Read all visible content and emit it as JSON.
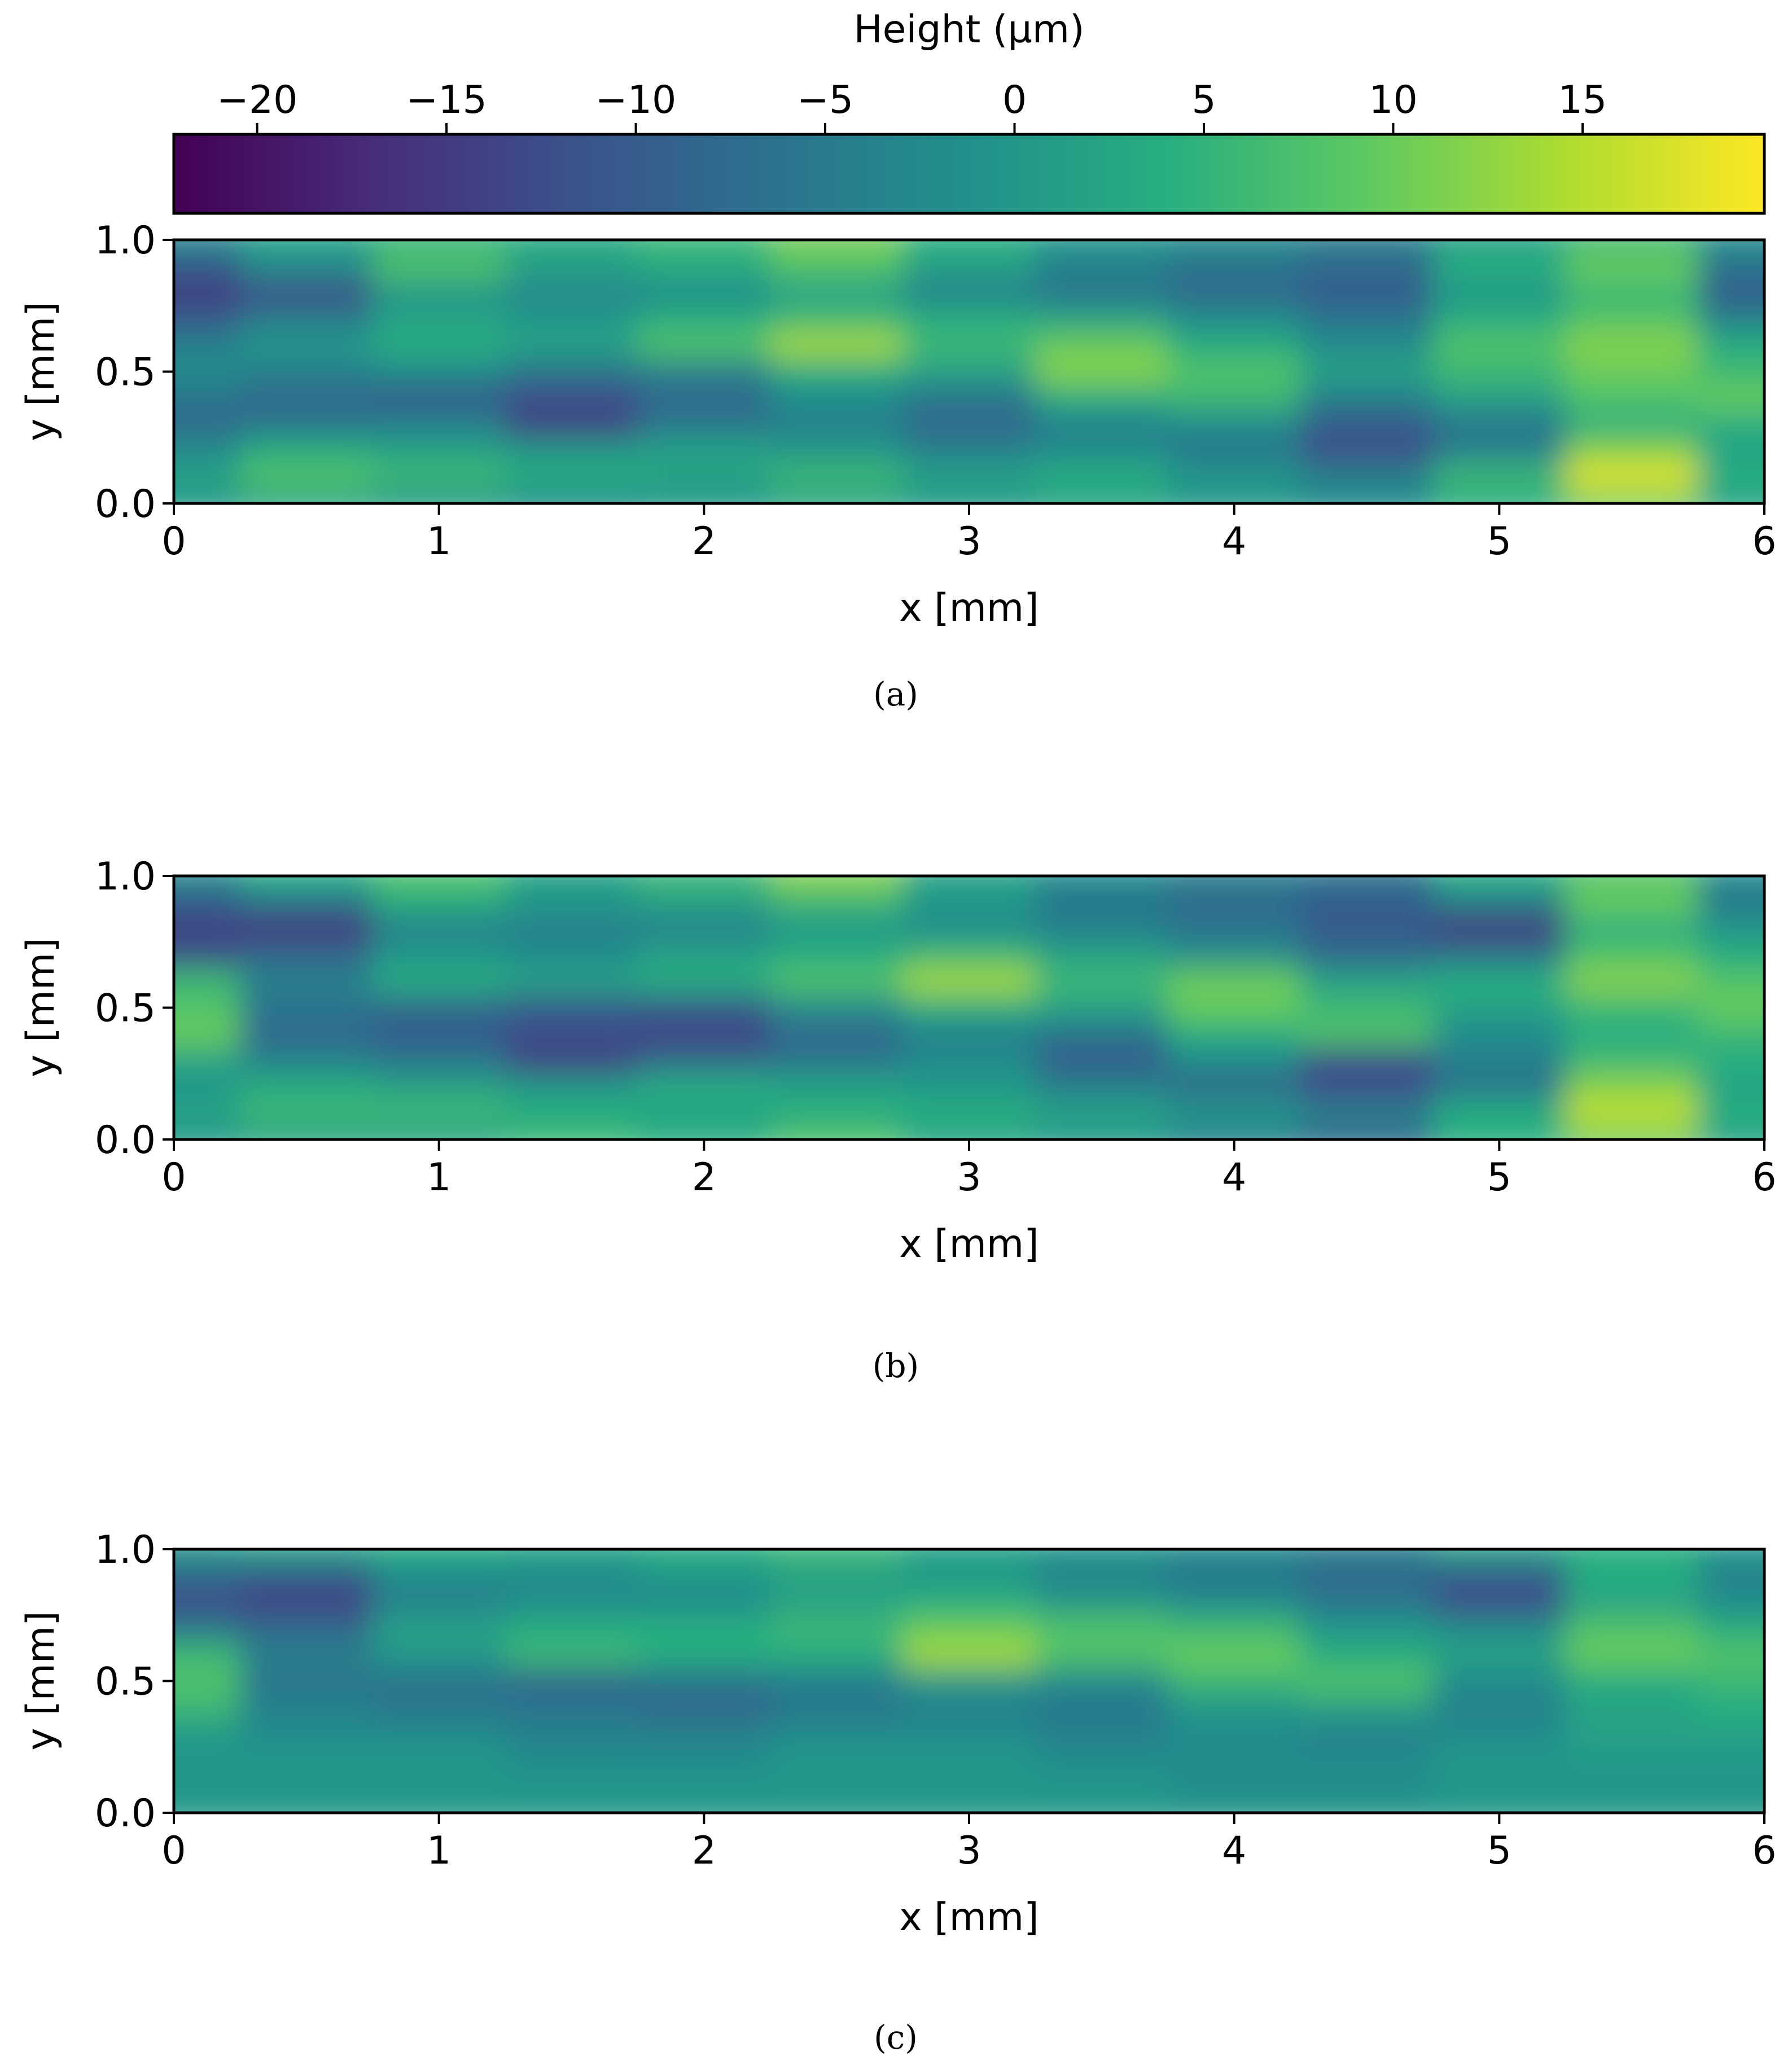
{
  "colorbar": {
    "label": "Height (µm)",
    "ticks": [
      -20,
      -15,
      -10,
      -5,
      0,
      5,
      10,
      15
    ],
    "tick_labels": [
      "−20",
      "−15",
      "−10",
      "−5",
      "0",
      "5",
      "10",
      "15"
    ],
    "range": [
      -22.2,
      19.8
    ],
    "colormap": "viridis"
  },
  "chart_data": [
    {
      "type": "heatmap",
      "caption": "(a)",
      "xlabel": "x [mm]",
      "ylabel": "y [mm]",
      "xlim": [
        0,
        6
      ],
      "ylim": [
        0,
        1
      ],
      "xticks": [
        "0",
        "1",
        "2",
        "3",
        "4",
        "5",
        "6"
      ],
      "yticks": [
        "0.0",
        "0.5",
        "1.0"
      ],
      "z_grid_columns": [
        0,
        0.5,
        1,
        1.5,
        2,
        2.5,
        3,
        3.5,
        4,
        4.5,
        5,
        5.5,
        6
      ],
      "z_grid_rows": [
        1.0,
        0.9,
        0.8,
        0.7,
        0.6,
        0.5,
        0.4,
        0.3,
        0.2,
        0.1,
        0.0
      ],
      "z": [
        [
          -3,
          2,
          5,
          3,
          6,
          11,
          4,
          0,
          -2,
          -4,
          2,
          6,
          -2
        ],
        [
          -10,
          -2,
          8,
          2,
          4,
          8,
          2,
          -4,
          -6,
          -8,
          4,
          10,
          -6
        ],
        [
          -15,
          -12,
          0,
          -3,
          -2,
          2,
          -4,
          -6,
          -8,
          -10,
          0,
          6,
          -10
        ],
        [
          -10,
          -5,
          2,
          0,
          4,
          6,
          4,
          2,
          -2,
          -6,
          4,
          8,
          -4
        ],
        [
          -4,
          0,
          4,
          2,
          8,
          14,
          6,
          10,
          4,
          -2,
          8,
          12,
          4
        ],
        [
          -2,
          -4,
          -2,
          -6,
          -4,
          4,
          2,
          12,
          8,
          2,
          6,
          10,
          6
        ],
        [
          -6,
          -8,
          -10,
          -12,
          -8,
          -2,
          -6,
          4,
          6,
          -4,
          2,
          8,
          10
        ],
        [
          -8,
          -6,
          -4,
          -14,
          -6,
          -4,
          -8,
          -4,
          -2,
          -10,
          -6,
          4,
          4
        ],
        [
          -2,
          4,
          2,
          0,
          2,
          0,
          -4,
          -2,
          -6,
          -12,
          -4,
          12,
          2
        ],
        [
          2,
          8,
          6,
          4,
          2,
          6,
          2,
          4,
          0,
          -4,
          6,
          18,
          4
        ],
        [
          0,
          2,
          0,
          -2,
          0,
          2,
          0,
          2,
          0,
          -2,
          4,
          10,
          2
        ]
      ]
    },
    {
      "type": "heatmap",
      "caption": "(b)",
      "xlabel": "x [mm]",
      "ylabel": "y [mm]",
      "xlim": [
        0,
        6
      ],
      "ylim": [
        0,
        1
      ],
      "xticks": [
        "0",
        "1",
        "2",
        "3",
        "4",
        "5",
        "6"
      ],
      "yticks": [
        "0.0",
        "0.5",
        "1.0"
      ],
      "z_grid_columns": [
        0,
        0.5,
        1,
        1.5,
        2,
        2.5,
        3,
        3.5,
        4,
        4.5,
        5,
        5.5,
        6
      ],
      "z_grid_rows": [
        1.0,
        0.9,
        0.8,
        0.7,
        0.6,
        0.5,
        0.4,
        0.3,
        0.2,
        0.1,
        0.0
      ],
      "z": [
        [
          -2,
          4,
          8,
          2,
          6,
          12,
          2,
          -2,
          -4,
          -6,
          4,
          8,
          -2
        ],
        [
          -10,
          -6,
          4,
          0,
          2,
          6,
          0,
          -6,
          -8,
          -10,
          -4,
          10,
          -6
        ],
        [
          -14,
          -16,
          -4,
          -4,
          -4,
          0,
          -2,
          -4,
          -6,
          -10,
          -16,
          4,
          0
        ],
        [
          -12,
          -8,
          0,
          -2,
          2,
          4,
          6,
          2,
          -2,
          -8,
          -6,
          8,
          4
        ],
        [
          6,
          -4,
          4,
          2,
          4,
          8,
          14,
          6,
          10,
          2,
          4,
          12,
          8
        ],
        [
          8,
          -6,
          -8,
          -10,
          -10,
          -2,
          4,
          2,
          10,
          6,
          2,
          6,
          10
        ],
        [
          10,
          -8,
          -10,
          -12,
          -14,
          -8,
          -4,
          -6,
          4,
          8,
          -2,
          4,
          6
        ],
        [
          2,
          -4,
          -6,
          -14,
          -8,
          -6,
          -2,
          -10,
          -2,
          -12,
          -4,
          6,
          4
        ],
        [
          0,
          4,
          2,
          0,
          4,
          2,
          0,
          -4,
          -8,
          -12,
          -6,
          12,
          2
        ],
        [
          2,
          6,
          6,
          4,
          2,
          4,
          4,
          2,
          0,
          -4,
          4,
          16,
          4
        ],
        [
          0,
          2,
          2,
          6,
          4,
          8,
          2,
          0,
          -4,
          -8,
          4,
          10,
          2
        ]
      ]
    },
    {
      "type": "heatmap",
      "caption": "(c)",
      "xlabel": "x [mm]",
      "ylabel": "y [mm]",
      "xlim": [
        0,
        6
      ],
      "ylim": [
        0,
        1
      ],
      "xticks": [
        "0",
        "1",
        "2",
        "3",
        "4",
        "5",
        "6"
      ],
      "yticks": [
        "0.0",
        "0.5",
        "1.0"
      ],
      "z_grid_columns": [
        0,
        0.5,
        1,
        1.5,
        2,
        2.5,
        3,
        3.5,
        4,
        4.5,
        5,
        5.5,
        6
      ],
      "z_grid_rows": [
        1.0,
        0.9,
        0.8,
        0.7,
        0.6,
        0.5,
        0.4,
        0.3,
        0.2,
        0.1,
        0.0
      ],
      "z": [
        [
          0,
          2,
          4,
          2,
          4,
          6,
          2,
          0,
          -2,
          -4,
          2,
          4,
          0
        ],
        [
          -8,
          -10,
          -2,
          -2,
          0,
          2,
          0,
          -4,
          -6,
          -8,
          -10,
          4,
          -4
        ],
        [
          -12,
          -14,
          -4,
          -2,
          -2,
          2,
          4,
          0,
          -2,
          -6,
          -12,
          2,
          -2
        ],
        [
          -6,
          -8,
          2,
          4,
          4,
          6,
          10,
          8,
          6,
          0,
          -2,
          8,
          4
        ],
        [
          6,
          -4,
          0,
          6,
          4,
          4,
          14,
          8,
          10,
          4,
          2,
          10,
          8
        ],
        [
          8,
          -6,
          -6,
          -8,
          -6,
          -4,
          0,
          -2,
          6,
          8,
          -2,
          4,
          6
        ],
        [
          6,
          -4,
          -6,
          -6,
          -8,
          -6,
          -4,
          -6,
          0,
          2,
          -4,
          2,
          4
        ],
        [
          0,
          -2,
          -2,
          -4,
          -4,
          -2,
          -2,
          -4,
          -2,
          -4,
          -2,
          2,
          2
        ],
        [
          0,
          0,
          0,
          -2,
          -2,
          0,
          0,
          -2,
          -2,
          -2,
          0,
          0,
          0
        ],
        [
          0,
          0,
          0,
          0,
          0,
          0,
          0,
          0,
          -2,
          -2,
          0,
          0,
          0
        ],
        [
          0,
          0,
          0,
          0,
          0,
          0,
          0,
          0,
          0,
          0,
          0,
          0,
          0
        ]
      ]
    }
  ]
}
